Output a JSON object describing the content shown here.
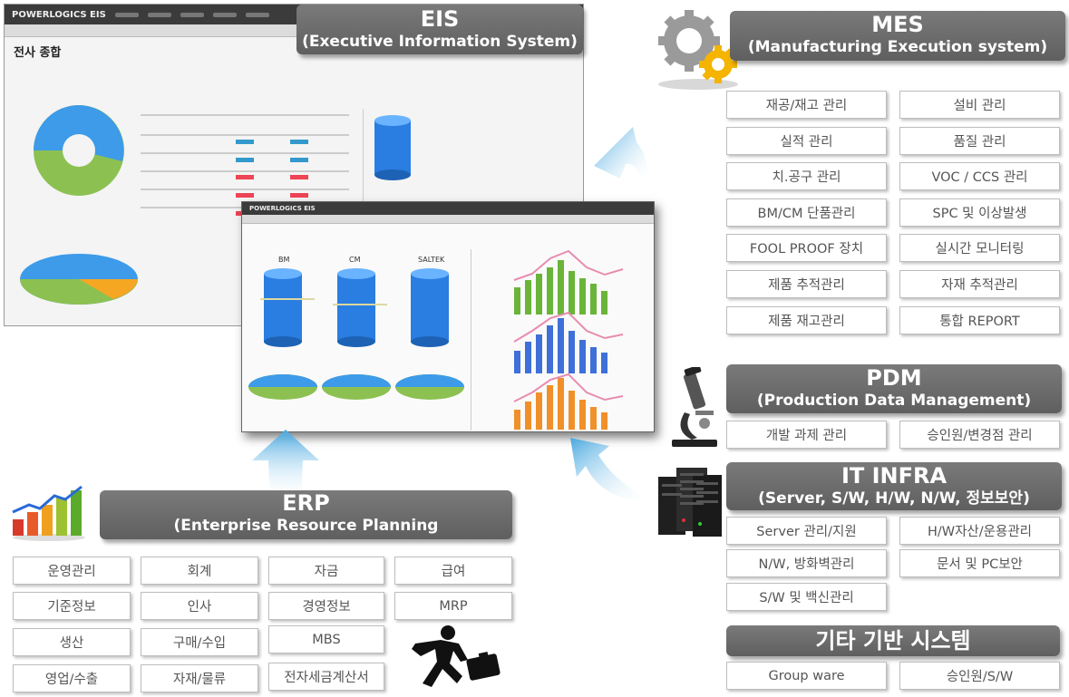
{
  "eis": {
    "title": "EIS",
    "subtitle": "(Executive Information System)",
    "screen_title": "전사 종합",
    "logo": "POWERLOGICS EIS",
    "inner_sections": [
      "BM",
      "CM",
      "SALTEK"
    ]
  },
  "mes": {
    "title": "MES",
    "subtitle": "(Manufacturing Execution system)",
    "items": [
      "재공/재고 관리",
      "설비 관리",
      "실적 관리",
      "품질 관리",
      "치.공구 관리",
      "VOC / CCS 관리",
      "BM/CM 단품관리",
      "SPC 및 이상발생",
      "FOOL PROOF 장치",
      "실시간 모니터링",
      "제품 추적관리",
      "자재 추적관리",
      "제품 재고관리",
      "통합 REPORT"
    ]
  },
  "pdm": {
    "title": "PDM",
    "subtitle": "(Production Data Management)",
    "items": [
      "개발 과제 관리",
      "승인원/변경점 관리"
    ]
  },
  "infra": {
    "title": "IT INFRA",
    "subtitle": "(Server, S/W, H/W, N/W, 정보보안)",
    "items": [
      "Server 관리/지원",
      "H/W자산/운용관리",
      "N/W, 방화벽관리",
      "문서 및 PC보안",
      "S/W 및 백신관리"
    ]
  },
  "etc": {
    "title": "기타 기반 시스템",
    "items": [
      "Group ware",
      "승인원/S/W"
    ]
  },
  "erp": {
    "title": "ERP",
    "subtitle": "(Enterprise Resource Planning",
    "items": [
      "운영관리",
      "회계",
      "자금",
      "급여",
      "기준정보",
      "인사",
      "경영정보",
      "MRP",
      "생산",
      "구매/수입",
      "MBS",
      "영업/수출",
      "자재/물류",
      "전자세금계산서"
    ]
  },
  "colors": {
    "header": "#6a6a6a",
    "arrow": "#5ab8e6",
    "box_border": "#bdbdbd"
  }
}
